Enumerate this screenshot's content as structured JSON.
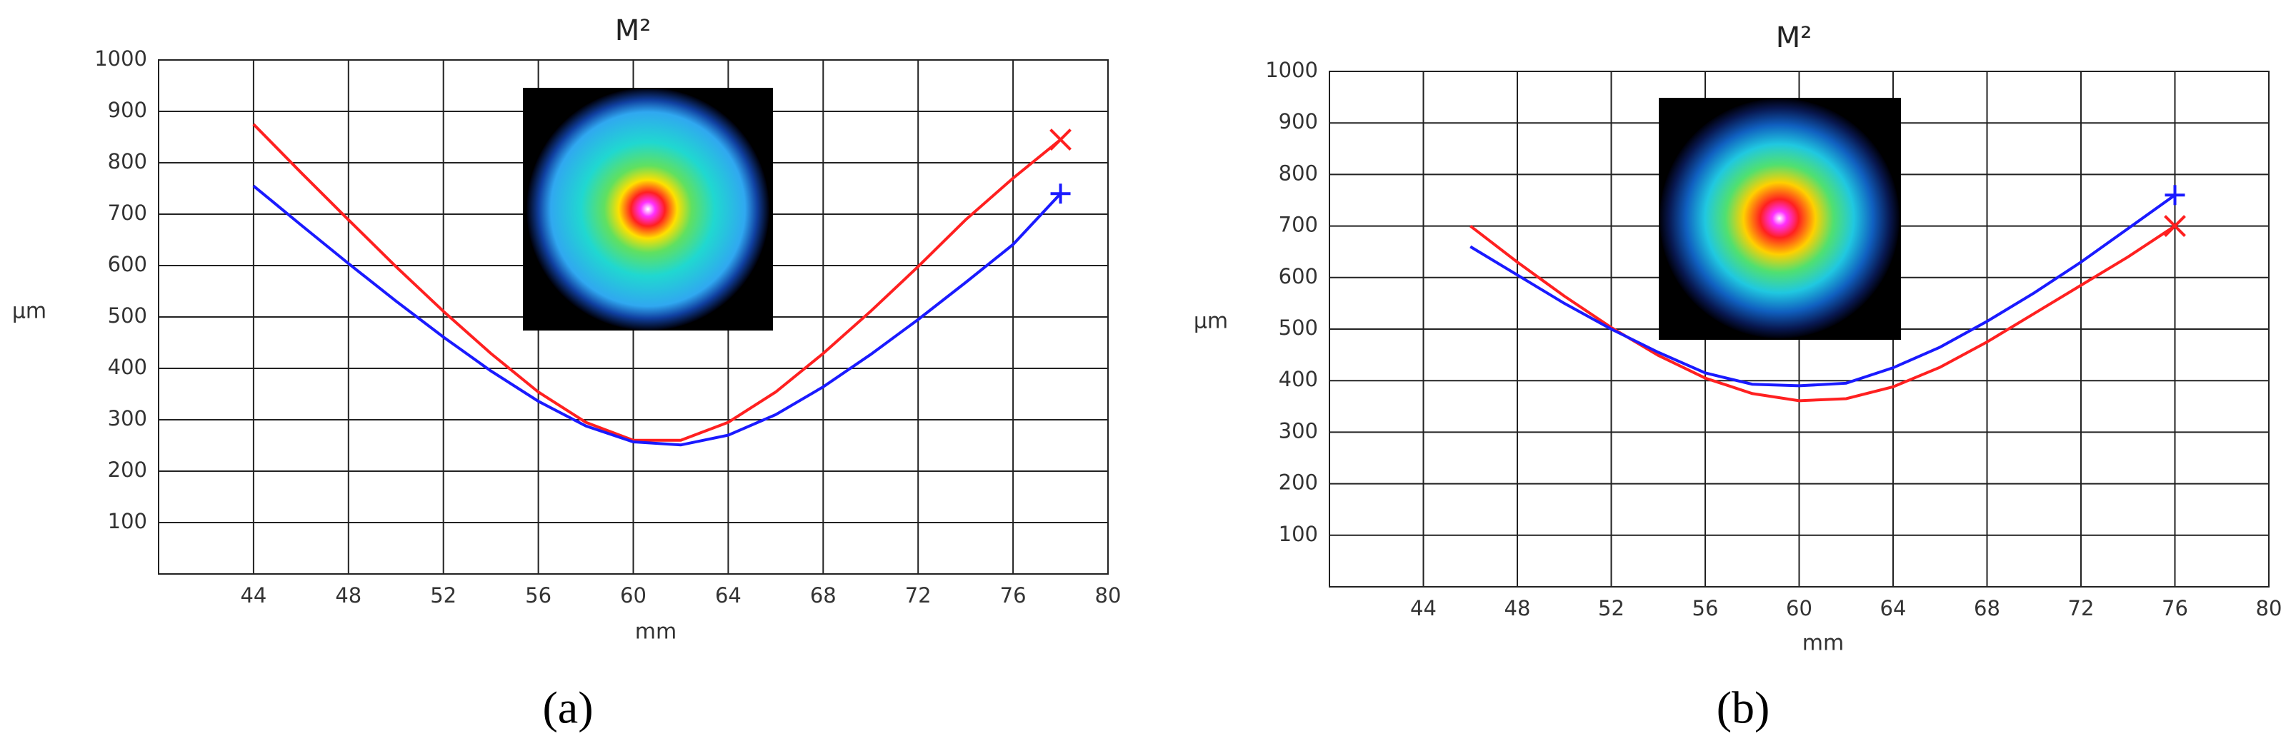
{
  "chart_data": [
    {
      "type": "line",
      "title": "M²",
      "x_label": "mm",
      "y_label": "μm",
      "panel_label": "(a)",
      "xlim": [
        40,
        80
      ],
      "xticks": [
        44,
        48,
        52,
        56,
        60,
        64,
        68,
        72,
        76,
        80
      ],
      "ylim": [
        0,
        1000
      ],
      "yticks": [
        100,
        200,
        300,
        400,
        500,
        600,
        700,
        800,
        900,
        1000
      ],
      "grid": true,
      "x": [
        44,
        46,
        48,
        50,
        52,
        54,
        56,
        58,
        60,
        62,
        64,
        66,
        68,
        70,
        72,
        74,
        76,
        78
      ],
      "series": [
        {
          "color": "#ff2020",
          "marker": "x",
          "values": [
            875,
            781,
            689,
            598,
            511,
            429,
            354,
            295,
            260,
            260,
            295,
            354,
            429,
            511,
            598,
            689,
            770,
            845
          ]
        },
        {
          "color": "#1a1aff",
          "marker": "+",
          "values": [
            755,
            679,
            604,
            531,
            461,
            395,
            336,
            288,
            257,
            251,
            270,
            310,
            364,
            427,
            495,
            567,
            641,
            740
          ]
        }
      ]
    },
    {
      "type": "line",
      "title": "M²",
      "x_label": "mm",
      "y_label": "μm",
      "panel_label": "(b)",
      "xlim": [
        40,
        80
      ],
      "xticks": [
        44,
        48,
        52,
        56,
        60,
        64,
        68,
        72,
        76,
        80
      ],
      "ylim": [
        0,
        1000
      ],
      "yticks": [
        100,
        200,
        300,
        400,
        500,
        600,
        700,
        800,
        900,
        1000
      ],
      "grid": true,
      "x": [
        46,
        48,
        50,
        52,
        54,
        56,
        58,
        60,
        62,
        64,
        66,
        68,
        70,
        72,
        74,
        76
      ],
      "series": [
        {
          "color": "#ff2020",
          "marker": "x",
          "values": [
            700,
            630,
            564,
            503,
            449,
            405,
            375,
            361,
            365,
            388,
            426,
            475,
            530,
            585,
            640,
            700
          ]
        },
        {
          "color": "#1a1aff",
          "marker": "+",
          "values": [
            660,
            605,
            550,
            500,
            455,
            415,
            393,
            390,
            395,
            425,
            465,
            515,
            570,
            630,
            695,
            760
          ]
        }
      ]
    }
  ]
}
